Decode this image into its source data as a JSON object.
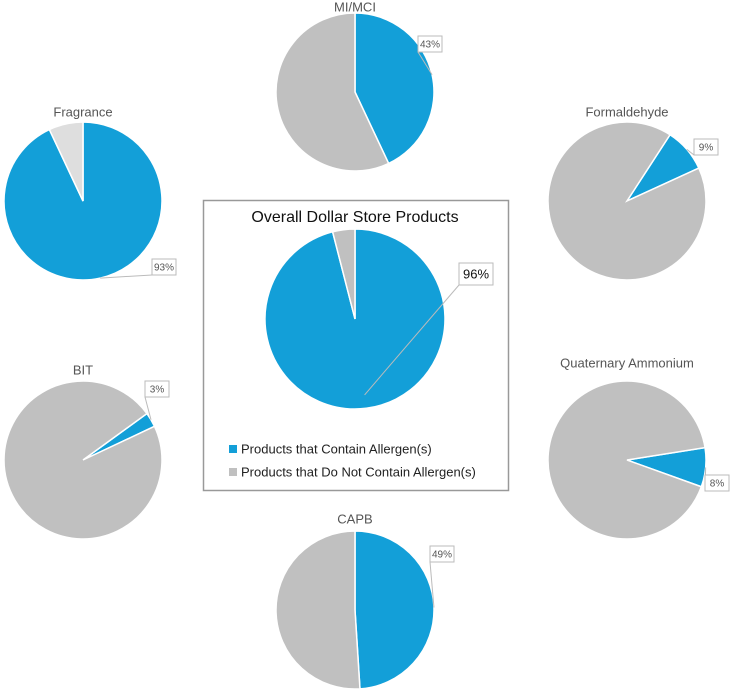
{
  "chart_data": [
    {
      "type": "pie",
      "title": "Overall Dollar Store Products",
      "categories": [
        "Products that Contain Allergen(s)",
        "Products that Do Not Contain Allergen(s)"
      ],
      "values": [
        96,
        4
      ],
      "value_labels": [
        "96%",
        null
      ],
      "colors": [
        "#139fd8",
        "#c0c0c0"
      ],
      "legend": "bottom"
    },
    {
      "type": "pie",
      "title": "MI/MCI",
      "values": [
        43,
        57
      ],
      "value_labels": [
        "43%",
        null
      ],
      "colors": [
        "#139fd8",
        "#c0c0c0"
      ]
    },
    {
      "type": "pie",
      "title": "Fragrance",
      "values": [
        93,
        7
      ],
      "value_labels": [
        "93%",
        null
      ],
      "colors": [
        "#139fd8",
        "#dedede"
      ]
    },
    {
      "type": "pie",
      "title": "Formaldehyde",
      "values": [
        9,
        91
      ],
      "value_labels": [
        "9%",
        null
      ],
      "colors": [
        "#139fd8",
        "#c0c0c0"
      ]
    },
    {
      "type": "pie",
      "title": "BIT",
      "values": [
        3,
        97
      ],
      "value_labels": [
        "3%",
        null
      ],
      "colors": [
        "#139fd8",
        "#c0c0c0"
      ]
    },
    {
      "type": "pie",
      "title": "Quaternary Ammonium",
      "values": [
        8,
        92
      ],
      "value_labels": [
        "8%",
        null
      ],
      "colors": [
        "#139fd8",
        "#c0c0c0"
      ]
    },
    {
      "type": "pie",
      "title": "CAPB",
      "values": [
        49,
        51
      ],
      "value_labels": [
        "49%",
        null
      ],
      "colors": [
        "#139fd8",
        "#c0c0c0"
      ]
    }
  ]
}
